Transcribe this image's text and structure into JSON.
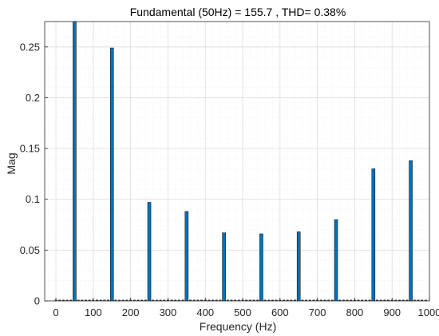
{
  "chart_data": {
    "type": "bar",
    "title": "Fundamental (50Hz) = 155.7 , THD= 0.38%",
    "xlabel": "Frequency (Hz)",
    "ylabel": "Mag",
    "xlim": [
      -30,
      1000
    ],
    "ylim": [
      0,
      0.275
    ],
    "xticks": [
      0,
      100,
      200,
      300,
      400,
      500,
      600,
      700,
      800,
      900,
      1000
    ],
    "xtick_labels": [
      "0",
      "100",
      "200",
      "300",
      "400",
      "500",
      "600",
      "700",
      "800",
      "900",
      "1000"
    ],
    "yticks": [
      0,
      0.05,
      0.1,
      0.15,
      0.2,
      0.25
    ],
    "ytick_labels": [
      "0",
      "0.05",
      "0.1",
      "0.15",
      "0.2",
      "0.25"
    ],
    "grid": "on (major and minor)",
    "bar_color": "#0072BD",
    "x": [
      50,
      150,
      250,
      350,
      450,
      550,
      650,
      750,
      850,
      950
    ],
    "values": [
      0.275,
      0.249,
      0.097,
      0.088,
      0.067,
      0.066,
      0.068,
      0.08,
      0.13,
      0.138
    ],
    "near_zero_bins_every_hz": 10
  }
}
